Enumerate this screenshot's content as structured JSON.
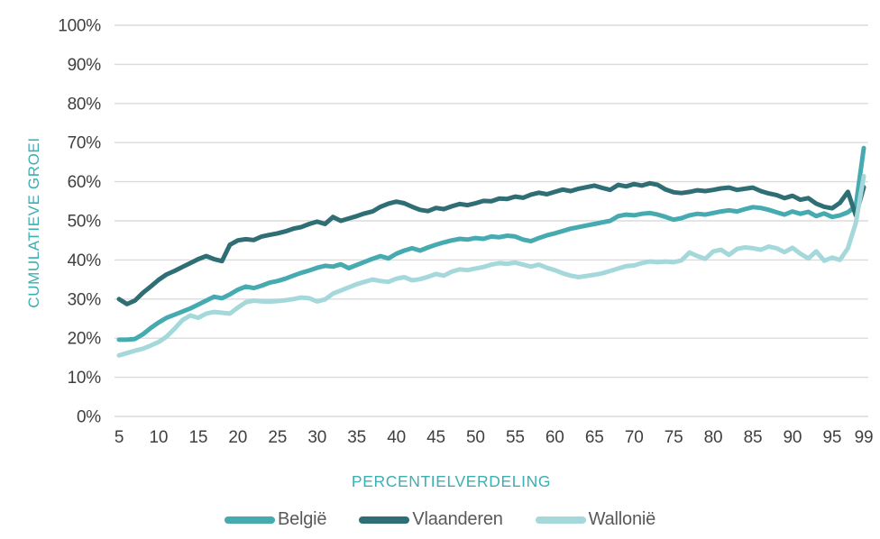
{
  "chart_data": {
    "type": "line",
    "title": "",
    "xlabel": "PERCENTIELVERDELING",
    "ylabel": "CUMULATIEVE GROEI",
    "ylim": [
      0,
      100
    ],
    "y_ticks": [
      0,
      10,
      20,
      30,
      40,
      50,
      60,
      70,
      80,
      90,
      100
    ],
    "y_tick_suffix": "%",
    "x_tick_labels": [
      5,
      10,
      15,
      20,
      25,
      30,
      35,
      40,
      45,
      50,
      55,
      60,
      65,
      70,
      75,
      80,
      85,
      90,
      95,
      99
    ],
    "grid": "horizontal-only",
    "legend_position": "bottom",
    "colors": {
      "axis_title": "#3CAEB4",
      "tick_label": "#3F3F3F",
      "legend_label": "#58595B",
      "gridline": "#DBDBDB"
    },
    "x": [
      5,
      6,
      7,
      8,
      9,
      10,
      11,
      12,
      13,
      14,
      15,
      16,
      17,
      18,
      19,
      20,
      21,
      22,
      23,
      24,
      25,
      26,
      27,
      28,
      29,
      30,
      31,
      32,
      33,
      34,
      35,
      36,
      37,
      38,
      39,
      40,
      41,
      42,
      43,
      44,
      45,
      46,
      47,
      48,
      49,
      50,
      51,
      52,
      53,
      54,
      55,
      56,
      57,
      58,
      59,
      60,
      61,
      62,
      63,
      64,
      65,
      66,
      67,
      68,
      69,
      70,
      71,
      72,
      73,
      74,
      75,
      76,
      77,
      78,
      79,
      80,
      81,
      82,
      83,
      84,
      85,
      86,
      87,
      88,
      89,
      90,
      91,
      92,
      93,
      94,
      95,
      96,
      97,
      98,
      99
    ],
    "series": [
      {
        "name": "België",
        "key": "belgie",
        "color": "#46ABB0",
        "values": [
          19.6,
          19.6,
          19.8,
          21.0,
          22.6,
          24.0,
          25.2,
          26.0,
          26.8,
          27.6,
          28.6,
          29.6,
          30.6,
          30.2,
          31.2,
          32.4,
          33.2,
          32.8,
          33.4,
          34.2,
          34.6,
          35.2,
          36.0,
          36.7,
          37.3,
          38.0,
          38.5,
          38.3,
          38.9,
          37.9,
          38.7,
          39.5,
          40.3,
          41.0,
          40.4,
          41.6,
          42.4,
          43.0,
          42.4,
          43.2,
          43.9,
          44.5,
          45.0,
          45.4,
          45.2,
          45.6,
          45.4,
          46.0,
          45.8,
          46.2,
          46.0,
          45.2,
          44.8,
          45.6,
          46.3,
          46.8,
          47.4,
          48.0,
          48.4,
          48.8,
          49.2,
          49.6,
          50.0,
          51.2,
          51.6,
          51.4,
          51.8,
          52.0,
          51.6,
          51.0,
          50.3,
          50.7,
          51.4,
          51.8,
          51.6,
          52.0,
          52.4,
          52.7,
          52.4,
          53.0,
          53.5,
          53.3,
          52.8,
          52.2,
          51.6,
          52.4,
          51.8,
          52.3,
          51.2,
          51.9,
          51.0,
          51.4,
          52.2,
          53.8,
          68.6
        ]
      },
      {
        "name": "Vlaanderen",
        "key": "vlaanderen",
        "color": "#2E6E74",
        "values": [
          30.0,
          28.7,
          29.6,
          31.6,
          33.2,
          34.9,
          36.3,
          37.2,
          38.2,
          39.2,
          40.2,
          41.0,
          40.2,
          39.7,
          43.9,
          45.0,
          45.3,
          45.1,
          46.0,
          46.4,
          46.8,
          47.3,
          48.0,
          48.4,
          49.2,
          49.8,
          49.2,
          51.0,
          50.0,
          50.6,
          51.2,
          51.9,
          52.4,
          53.6,
          54.4,
          54.9,
          54.5,
          53.6,
          52.8,
          52.5,
          53.3,
          53.0,
          53.7,
          54.3,
          54.0,
          54.5,
          55.1,
          55.0,
          55.7,
          55.6,
          56.2,
          55.9,
          56.7,
          57.2,
          56.8,
          57.4,
          58.0,
          57.6,
          58.2,
          58.6,
          59.0,
          58.4,
          57.9,
          59.2,
          58.8,
          59.4,
          59.0,
          59.6,
          59.2,
          58.0,
          57.3,
          57.1,
          57.4,
          57.8,
          57.6,
          57.9,
          58.3,
          58.5,
          57.9,
          58.2,
          58.5,
          57.6,
          57.0,
          56.6,
          55.8,
          56.4,
          55.4,
          55.8,
          54.4,
          53.6,
          53.2,
          54.6,
          57.4,
          51.4,
          58.6
        ]
      },
      {
        "name": "Wallonië",
        "key": "wallonie",
        "color": "#A4D8DB",
        "values": [
          15.6,
          16.2,
          16.8,
          17.3,
          18.1,
          19.0,
          20.4,
          22.4,
          24.6,
          25.8,
          25.2,
          26.3,
          26.7,
          26.5,
          26.3,
          27.8,
          29.2,
          29.6,
          29.4,
          29.3,
          29.5,
          29.7,
          30.0,
          30.4,
          30.2,
          29.4,
          29.9,
          31.4,
          32.2,
          33.0,
          33.8,
          34.4,
          35.0,
          34.6,
          34.4,
          35.2,
          35.6,
          34.8,
          35.1,
          35.7,
          36.4,
          36.0,
          37.0,
          37.6,
          37.4,
          37.8,
          38.2,
          38.8,
          39.2,
          39.0,
          39.3,
          38.8,
          38.3,
          38.8,
          38.0,
          37.4,
          36.6,
          36.0,
          35.6,
          35.9,
          36.2,
          36.6,
          37.2,
          37.8,
          38.4,
          38.6,
          39.2,
          39.6,
          39.4,
          39.6,
          39.4,
          39.9,
          41.9,
          41.0,
          40.3,
          42.2,
          42.6,
          41.3,
          42.8,
          43.2,
          43.0,
          42.6,
          43.4,
          43.0,
          42.0,
          43.1,
          41.6,
          40.4,
          42.2,
          39.8,
          40.6,
          40.0,
          43.0,
          49.5,
          61.4
        ]
      }
    ]
  }
}
